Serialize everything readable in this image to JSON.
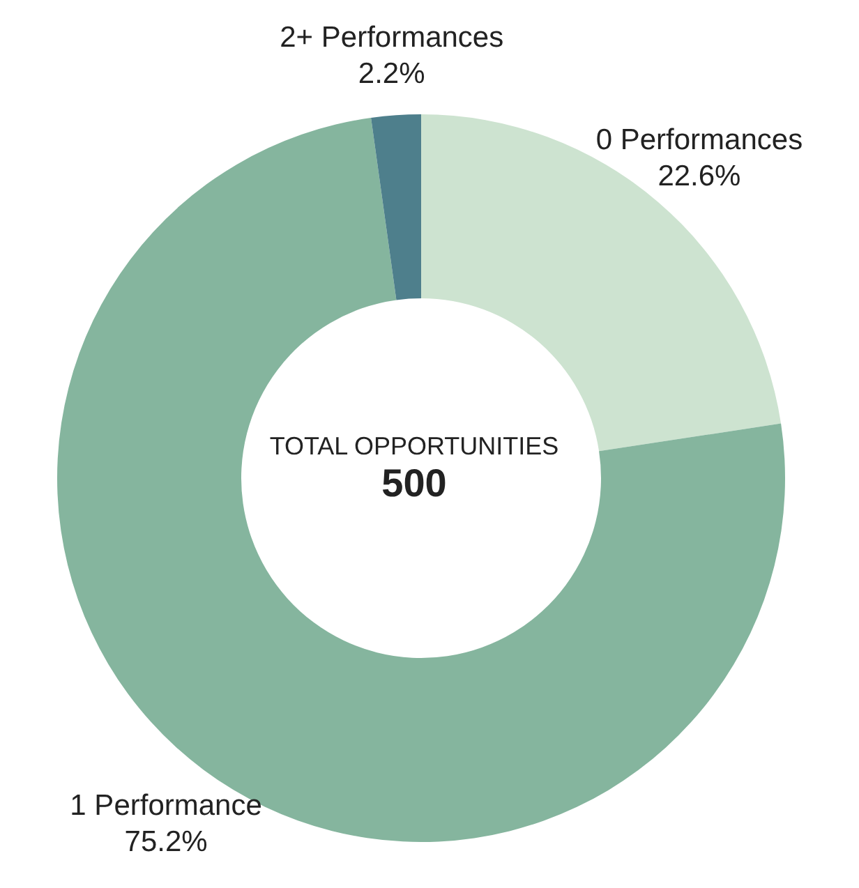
{
  "chart_data": {
    "type": "donut",
    "categories": [
      "0 Performances",
      "1 Performance",
      "2+ Performances"
    ],
    "values": [
      22.6,
      75.2,
      2.2
    ],
    "value_labels": [
      "22.6%",
      "75.2%",
      "2.2%"
    ],
    "colors": [
      "#cde3d0",
      "#85b59e",
      "#4e7f8c"
    ],
    "annotations": [
      "TOTAL OPPORTUNITIES",
      "500"
    ],
    "legend": false
  }
}
